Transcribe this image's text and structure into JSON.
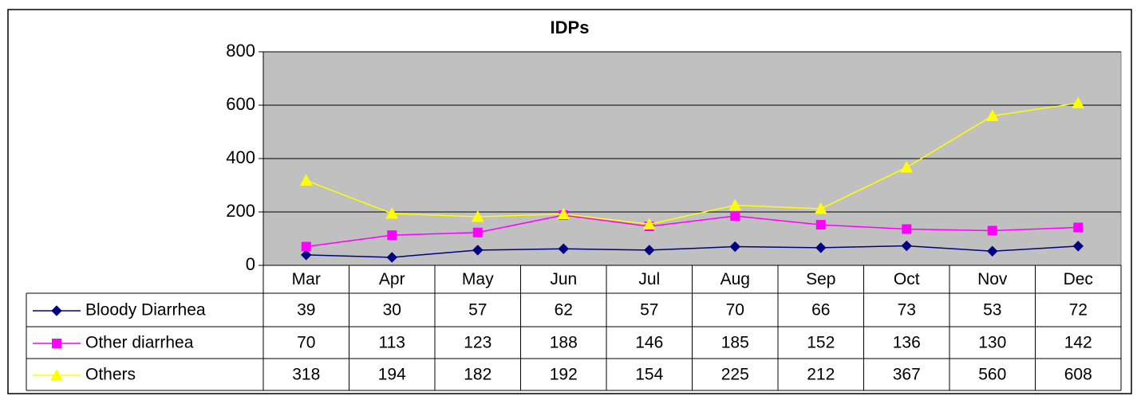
{
  "chart_data": {
    "type": "line",
    "title": "IDPs",
    "categories": [
      "Mar",
      "Apr",
      "May",
      "Jun",
      "Jul",
      "Aug",
      "Sep",
      "Oct",
      "Nov",
      "Dec"
    ],
    "series": [
      {
        "name": "Bloody Diarrhea",
        "color": "#000080",
        "marker": "diamond",
        "values": [
          39,
          30,
          57,
          62,
          57,
          70,
          66,
          73,
          53,
          72
        ]
      },
      {
        "name": "Other diarrhea",
        "color": "#ff00ff",
        "marker": "square",
        "values": [
          70,
          113,
          123,
          188,
          146,
          185,
          152,
          136,
          130,
          142
        ]
      },
      {
        "name": "Others",
        "color": "#ffff00",
        "marker": "triangle",
        "values": [
          318,
          194,
          182,
          192,
          154,
          225,
          212,
          367,
          560,
          608
        ]
      }
    ],
    "ylim": [
      0,
      800
    ],
    "yticks": [
      0,
      200,
      400,
      600,
      800
    ],
    "grid": true,
    "data_table": true
  }
}
